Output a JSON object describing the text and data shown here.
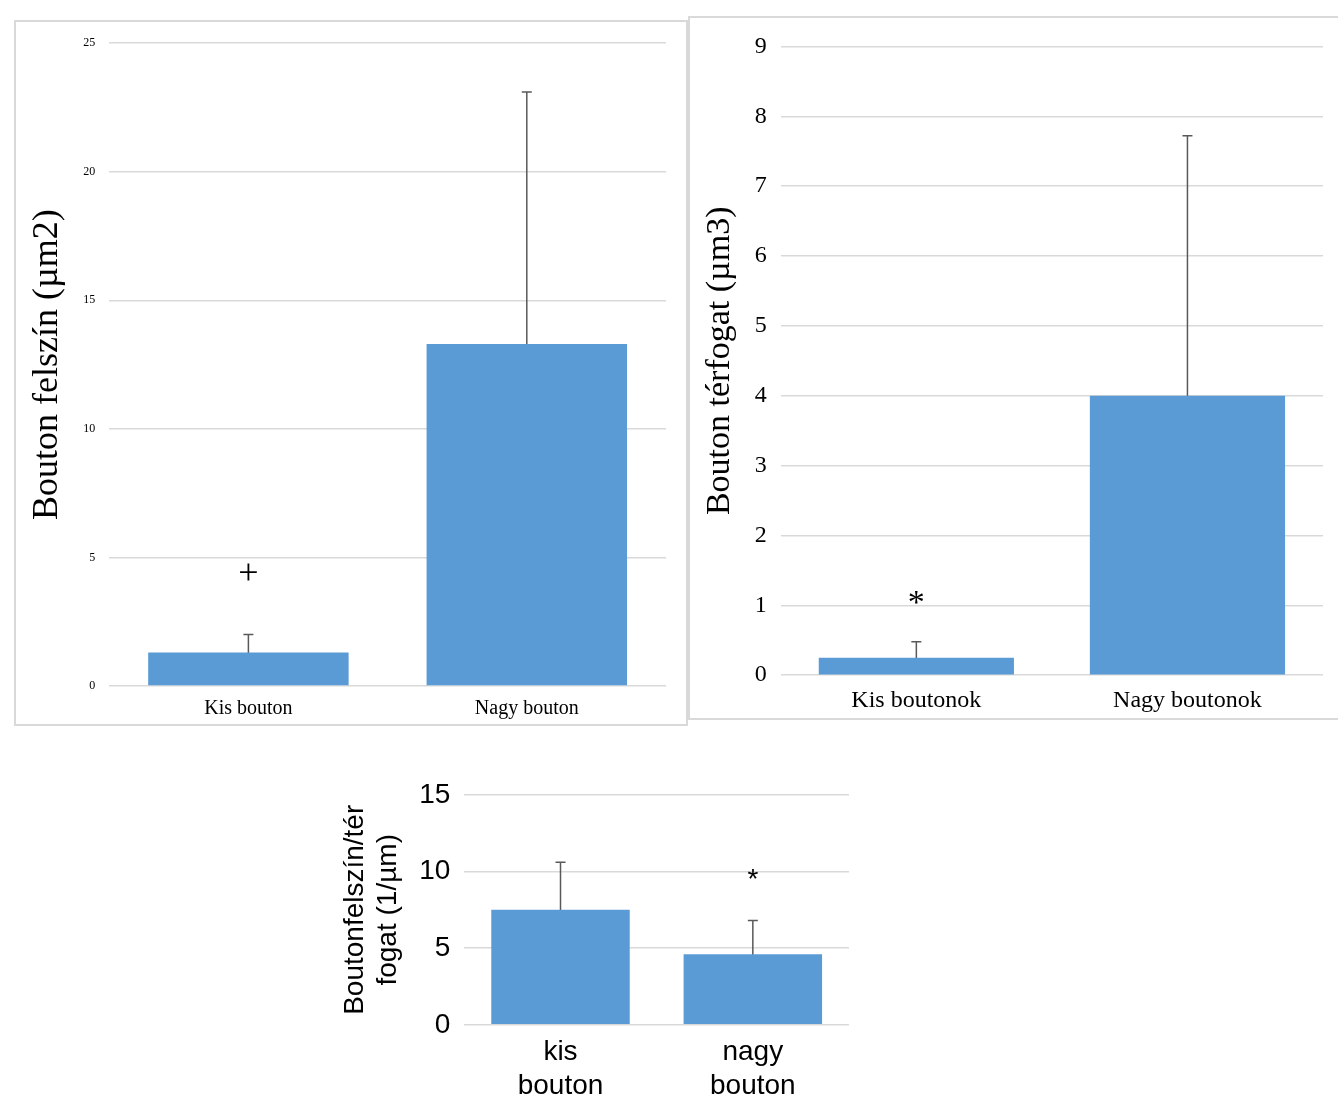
{
  "chart_data": [
    {
      "type": "bar",
      "ylabel": "Bouton felszín (µm2)",
      "categories": [
        "Kis bouton",
        "Nagy bouton"
      ],
      "values": [
        1.3,
        13.3
      ],
      "errors": [
        0.7,
        9.8
      ],
      "color": "#5b9bd5",
      "ylim": [
        0,
        25
      ],
      "yticks": [
        0,
        5,
        10,
        15,
        20,
        25
      ],
      "grid": "y",
      "legend": false,
      "annotations": [
        "+"
      ]
    },
    {
      "type": "bar",
      "ylabel": "Bouton térfogat (µm3)",
      "categories": [
        "Kis boutonok",
        "Nagy boutonok"
      ],
      "values": [
        0.25,
        4.0
      ],
      "errors": [
        0.23,
        3.72
      ],
      "color": "#5b9bd5",
      "ylim": [
        0,
        9
      ],
      "yticks": [
        0,
        1,
        2,
        3,
        4,
        5,
        6,
        7,
        8,
        9
      ],
      "grid": "y",
      "legend": false,
      "annotations": [
        "*"
      ]
    },
    {
      "type": "bar",
      "ylabel": "Boutonfelszín/tér fogat (1/µm)",
      "categories": [
        "kis bouton",
        "nagy bouton"
      ],
      "values": [
        7.5,
        4.6
      ],
      "errors": [
        3.1,
        2.2
      ],
      "color": "#5b9bd5",
      "ylim": [
        0,
        15
      ],
      "yticks": [
        0,
        5,
        10,
        15
      ],
      "grid": "y",
      "legend": false,
      "annotations": [
        "*"
      ]
    }
  ]
}
